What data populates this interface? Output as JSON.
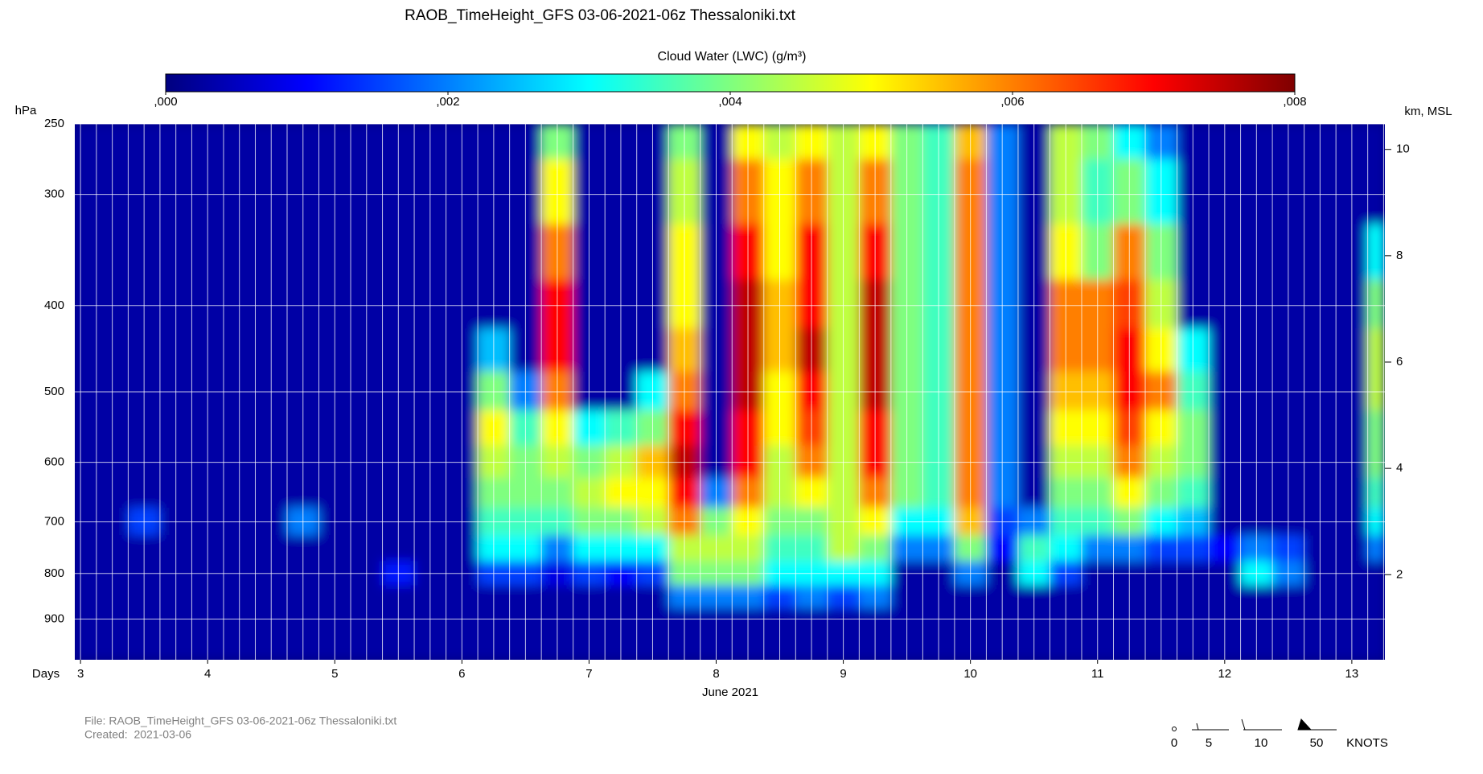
{
  "chart_data": {
    "type": "heatmap",
    "title": "RAOB_TimeHeight_GFS 03-06-2021-06z Thessaloniki.txt",
    "colorbar_label": "Cloud Water (LWC) (g/m³)",
    "ylabel": "hPa",
    "y2label": "km, MSL",
    "xlabel": "Days",
    "x_sublabel": "June 2021",
    "footer": {
      "file": "File: RAOB_TimeHeight_GFS 03-06-2021-06z Thessaloniki.txt",
      "created": "Created:  2021-03-06"
    },
    "wind_legend": {
      "labels": [
        0,
        5,
        10,
        50
      ],
      "unit": "KNOTS"
    },
    "colormap": [
      "#00007f",
      "#0000ff",
      "#007fff",
      "#00ffff",
      "#7fff7f",
      "#ffff00",
      "#ff7f00",
      "#ff0000",
      "#7f0000"
    ],
    "zlim": [
      0,
      0.008
    ],
    "zticks": [
      {
        "value": 0,
        "label": ",000"
      },
      {
        "value": 0.002,
        "label": ",002"
      },
      {
        "value": 0.004,
        "label": ",004"
      },
      {
        "value": 0.006,
        "label": ",006"
      },
      {
        "value": 0.008,
        "label": ",008"
      }
    ],
    "xlim": [
      2.955,
      13.26
    ],
    "xticks": [
      3,
      4,
      5,
      6,
      7,
      8,
      9,
      10,
      11,
      12,
      13
    ],
    "xgrid_step": 0.125,
    "ylog": true,
    "ylim": [
      1000,
      250
    ],
    "yticks": [
      250,
      300,
      400,
      500,
      600,
      700,
      800,
      900
    ],
    "y2lim": [
      0.4,
      10.48
    ],
    "y2ticks": [
      2,
      4,
      6,
      8,
      10
    ],
    "grid": true,
    "x": [
      3,
      3.25,
      3.5,
      3.75,
      4,
      4.25,
      4.5,
      4.75,
      5,
      5.25,
      5.5,
      5.75,
      6,
      6.25,
      6.5,
      6.75,
      7,
      7.25,
      7.5,
      7.75,
      8,
      8.25,
      8.5,
      8.75,
      9,
      9.25,
      9.5,
      9.75,
      10,
      10.25,
      10.5,
      10.75,
      11,
      11.25,
      11.5,
      11.75,
      12,
      12.25,
      12.5,
      12.75,
      13,
      13.25
    ],
    "levels": [
      250,
      300,
      350,
      400,
      450,
      500,
      550,
      600,
      650,
      700,
      750,
      800,
      850,
      900,
      950,
      1000
    ],
    "z": [
      [
        0.0003,
        0.0003,
        0.0003,
        0.0003,
        0.0003,
        0.0003,
        0.0003,
        0.0003,
        0.0003,
        0.0003,
        0.0003,
        0.0003,
        0.0003,
        0.0003,
        0.0003,
        0.004,
        0.0003,
        0.0003,
        0.0003,
        0.004,
        0.0003,
        0.005,
        0.0045,
        0.005,
        0.0045,
        0.005,
        0.004,
        0.0035,
        0.0055,
        0.002,
        0.0003,
        0.0045,
        0.004,
        0.003,
        0.002,
        0.0003,
        0.0003,
        0.0003,
        0.0003,
        0.0003,
        0.0003,
        0.0003
      ],
      [
        0.0003,
        0.0003,
        0.0003,
        0.0003,
        0.0003,
        0.0003,
        0.0003,
        0.0003,
        0.0003,
        0.0003,
        0.0003,
        0.0003,
        0.0003,
        0.0003,
        0.0003,
        0.005,
        0.0003,
        0.0003,
        0.0003,
        0.0045,
        0.0003,
        0.006,
        0.005,
        0.006,
        0.0045,
        0.006,
        0.004,
        0.0035,
        0.006,
        0.002,
        0.0003,
        0.0045,
        0.0035,
        0.004,
        0.003,
        0.0003,
        0.0003,
        0.0003,
        0.0003,
        0.0003,
        0.0003,
        0.0003
      ],
      [
        0.0003,
        0.0003,
        0.0003,
        0.0003,
        0.0003,
        0.0003,
        0.0003,
        0.0003,
        0.0003,
        0.0003,
        0.0003,
        0.0003,
        0.0003,
        0.0003,
        0.0003,
        0.006,
        0.0003,
        0.0003,
        0.0003,
        0.005,
        0.0003,
        0.007,
        0.005,
        0.007,
        0.0045,
        0.007,
        0.004,
        0.0035,
        0.006,
        0.002,
        0.0003,
        0.005,
        0.004,
        0.006,
        0.004,
        0.0003,
        0.0003,
        0.0003,
        0.0003,
        0.0003,
        0.0003,
        0.003
      ],
      [
        0.0003,
        0.0003,
        0.0003,
        0.0003,
        0.0003,
        0.0003,
        0.0003,
        0.0003,
        0.0003,
        0.0003,
        0.0003,
        0.0003,
        0.0003,
        0.0003,
        0.0003,
        0.007,
        0.0003,
        0.0003,
        0.0003,
        0.005,
        0.0003,
        0.0075,
        0.0055,
        0.007,
        0.0045,
        0.0075,
        0.004,
        0.0035,
        0.006,
        0.002,
        0.0003,
        0.006,
        0.006,
        0.0065,
        0.0045,
        0.0003,
        0.0003,
        0.0003,
        0.0003,
        0.0003,
        0.0003,
        0.004
      ],
      [
        0.0003,
        0.0003,
        0.0003,
        0.0003,
        0.0003,
        0.0003,
        0.0003,
        0.0003,
        0.0003,
        0.0003,
        0.0003,
        0.0003,
        0.0003,
        0.0025,
        0.0003,
        0.007,
        0.0003,
        0.0003,
        0.0003,
        0.0055,
        0.0003,
        0.0075,
        0.0055,
        0.0075,
        0.0045,
        0.0075,
        0.004,
        0.0035,
        0.006,
        0.002,
        0.0003,
        0.006,
        0.006,
        0.007,
        0.005,
        0.003,
        0.0003,
        0.0003,
        0.0003,
        0.0003,
        0.0003,
        0.0045
      ],
      [
        0.0003,
        0.0003,
        0.0003,
        0.0003,
        0.0003,
        0.0003,
        0.0003,
        0.0003,
        0.0003,
        0.0003,
        0.0003,
        0.0003,
        0.0003,
        0.004,
        0.002,
        0.006,
        0.0003,
        0.0003,
        0.003,
        0.006,
        0.0003,
        0.0075,
        0.005,
        0.007,
        0.0045,
        0.0075,
        0.004,
        0.0035,
        0.006,
        0.002,
        0.0003,
        0.0055,
        0.0055,
        0.007,
        0.006,
        0.0035,
        0.0003,
        0.0003,
        0.0003,
        0.0003,
        0.0003,
        0.0045
      ],
      [
        0.0003,
        0.0003,
        0.0003,
        0.0003,
        0.0003,
        0.0003,
        0.0003,
        0.0003,
        0.0003,
        0.0003,
        0.0003,
        0.0003,
        0.0003,
        0.005,
        0.0035,
        0.005,
        0.003,
        0.0035,
        0.004,
        0.007,
        0.0003,
        0.007,
        0.005,
        0.0065,
        0.0045,
        0.007,
        0.004,
        0.0035,
        0.006,
        0.002,
        0.0003,
        0.005,
        0.005,
        0.0065,
        0.005,
        0.004,
        0.0003,
        0.0003,
        0.0003,
        0.0003,
        0.0003,
        0.004
      ],
      [
        0.0003,
        0.0003,
        0.0003,
        0.0003,
        0.0003,
        0.0003,
        0.0003,
        0.0003,
        0.0003,
        0.0003,
        0.0003,
        0.0003,
        0.0003,
        0.0045,
        0.004,
        0.0045,
        0.004,
        0.0045,
        0.0055,
        0.0075,
        0.0003,
        0.007,
        0.0045,
        0.006,
        0.0045,
        0.007,
        0.004,
        0.0035,
        0.006,
        0.002,
        0.0003,
        0.0045,
        0.0045,
        0.006,
        0.0045,
        0.004,
        0.0003,
        0.0003,
        0.0003,
        0.0003,
        0.0003,
        0.004
      ],
      [
        0.0003,
        0.0003,
        0.0003,
        0.0003,
        0.0003,
        0.0003,
        0.0003,
        0.0003,
        0.0003,
        0.0003,
        0.0003,
        0.0003,
        0.0003,
        0.004,
        0.004,
        0.004,
        0.0045,
        0.005,
        0.005,
        0.007,
        0.002,
        0.006,
        0.0045,
        0.005,
        0.0045,
        0.006,
        0.004,
        0.0035,
        0.006,
        0.002,
        0.0003,
        0.004,
        0.004,
        0.005,
        0.004,
        0.0035,
        0.0003,
        0.0003,
        0.0003,
        0.0003,
        0.0003,
        0.0035
      ],
      [
        0.0003,
        0.0003,
        0.0015,
        0.0003,
        0.0003,
        0.0003,
        0.0003,
        0.002,
        0.0003,
        0.0003,
        0.0003,
        0.0003,
        0.0003,
        0.0035,
        0.0035,
        0.0035,
        0.004,
        0.004,
        0.0045,
        0.006,
        0.004,
        0.005,
        0.004,
        0.004,
        0.0045,
        0.005,
        0.003,
        0.003,
        0.0055,
        0.0015,
        0.002,
        0.0035,
        0.0035,
        0.004,
        0.003,
        0.0025,
        0.0003,
        0.0003,
        0.0003,
        0.0003,
        0.0003,
        0.003
      ],
      [
        0.0003,
        0.0003,
        0.0003,
        0.0003,
        0.0003,
        0.0003,
        0.0003,
        0.0003,
        0.0003,
        0.0003,
        0.0003,
        0.0003,
        0.0003,
        0.003,
        0.003,
        0.002,
        0.003,
        0.003,
        0.003,
        0.0045,
        0.0045,
        0.0045,
        0.0035,
        0.0035,
        0.0045,
        0.004,
        0.002,
        0.002,
        0.004,
        0.001,
        0.0035,
        0.003,
        0.002,
        0.002,
        0.0015,
        0.0015,
        0.001,
        0.002,
        0.0015,
        0.0003,
        0.0003,
        0.002
      ],
      [
        0.0003,
        0.0003,
        0.0003,
        0.0003,
        0.0003,
        0.0003,
        0.0003,
        0.0003,
        0.0003,
        0.0003,
        0.0012,
        0.0003,
        0.0003,
        0.0015,
        0.0015,
        0.0008,
        0.0015,
        0.001,
        0.0015,
        0.004,
        0.004,
        0.004,
        0.003,
        0.003,
        0.003,
        0.003,
        0.0003,
        0.0003,
        0.002,
        0.0003,
        0.003,
        0.0015,
        0.0003,
        0.0003,
        0.0003,
        0.0003,
        0.0003,
        0.003,
        0.002,
        0.0003,
        0.0003,
        0.0003
      ],
      [
        0.0003,
        0.0003,
        0.0003,
        0.0003,
        0.0003,
        0.0003,
        0.0003,
        0.0003,
        0.0003,
        0.0003,
        0.0003,
        0.0003,
        0.0003,
        0.0003,
        0.0003,
        0.0003,
        0.0003,
        0.0003,
        0.0003,
        0.002,
        0.002,
        0.002,
        0.0015,
        0.002,
        0.0015,
        0.002,
        0.0003,
        0.0003,
        0.0003,
        0.0003,
        0.0003,
        0.0003,
        0.0003,
        0.0003,
        0.0003,
        0.0003,
        0.0003,
        0.0003,
        0.0003,
        0.0003,
        0.0003,
        0.0003
      ],
      [
        0.0003,
        0.0003,
        0.0003,
        0.0003,
        0.0003,
        0.0003,
        0.0003,
        0.0003,
        0.0003,
        0.0003,
        0.0003,
        0.0003,
        0.0003,
        0.0003,
        0.0003,
        0.0003,
        0.0003,
        0.0003,
        0.0003,
        0.0003,
        0.0003,
        0.0003,
        0.0003,
        0.0003,
        0.0003,
        0.0003,
        0.0003,
        0.0003,
        0.0003,
        0.0003,
        0.0003,
        0.0003,
        0.0003,
        0.0003,
        0.0003,
        0.0003,
        0.0003,
        0.0003,
        0.0003,
        0.0003,
        0.0003,
        0.0003
      ],
      [
        0.0003,
        0.0003,
        0.0003,
        0.0003,
        0.0003,
        0.0003,
        0.0003,
        0.0003,
        0.0003,
        0.0003,
        0.0003,
        0.0003,
        0.0003,
        0.0003,
        0.0003,
        0.0003,
        0.0003,
        0.0003,
        0.0003,
        0.0003,
        0.0003,
        0.0003,
        0.0003,
        0.0003,
        0.0003,
        0.0003,
        0.0003,
        0.0003,
        0.0003,
        0.0003,
        0.0003,
        0.0003,
        0.0003,
        0.0003,
        0.0003,
        0.0003,
        0.0003,
        0.0003,
        0.0003,
        0.0003,
        0.0003,
        0.0003
      ],
      [
        0.0003,
        0.0003,
        0.0003,
        0.0003,
        0.0003,
        0.0003,
        0.0003,
        0.0003,
        0.0003,
        0.0003,
        0.0003,
        0.0003,
        0.0003,
        0.0003,
        0.0003,
        0.0003,
        0.0003,
        0.0003,
        0.0003,
        0.0003,
        0.0003,
        0.0003,
        0.0003,
        0.0003,
        0.0003,
        0.0003,
        0.0003,
        0.0003,
        0.0003,
        0.0003,
        0.0003,
        0.0003,
        0.0003,
        0.0003,
        0.0003,
        0.0003,
        0.0003,
        0.0003,
        0.0003,
        0.0003,
        0.0003,
        0.0003
      ]
    ]
  }
}
